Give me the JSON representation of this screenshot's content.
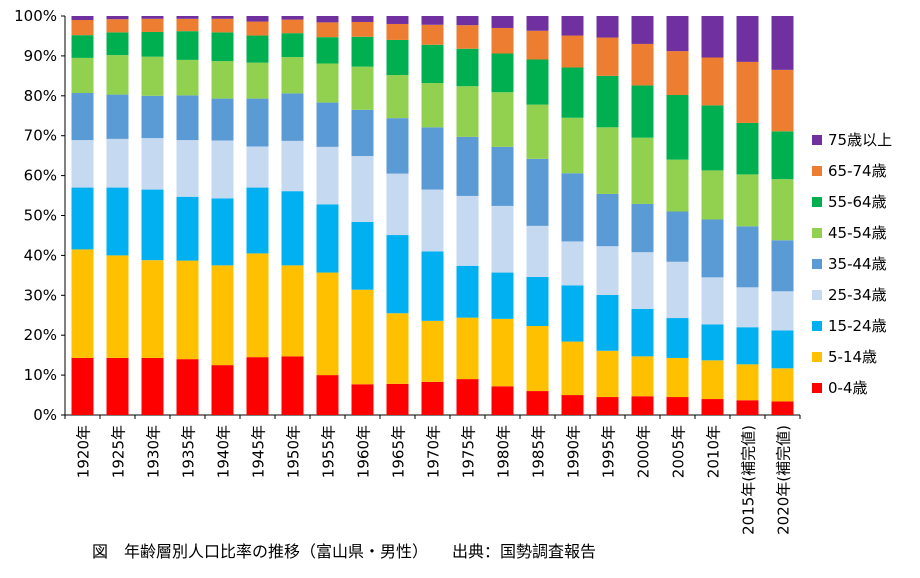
{
  "chart_data": {
    "type": "bar",
    "stacked": true,
    "normalized": true,
    "categories": [
      "1920年",
      "1925年",
      "1930年",
      "1935年",
      "1940年",
      "1945年",
      "1950年",
      "1955年",
      "1960年",
      "1965年",
      "1970年",
      "1975年",
      "1980年",
      "1985年",
      "1990年",
      "1995年",
      "2000年",
      "2005年",
      "2010年",
      "2015年(補完値)",
      "2020年(補完値)"
    ],
    "ylim": [
      0,
      100
    ],
    "yticks": [
      "0%",
      "10%",
      "20%",
      "30%",
      "40%",
      "50%",
      "60%",
      "70%",
      "80%",
      "90%",
      "100%"
    ],
    "grid": false,
    "legend_position": "right",
    "series": [
      {
        "name": "0-4歳",
        "color": "#ff0000",
        "values": [
          14.3,
          14.3,
          14.3,
          14.0,
          12.5,
          14.5,
          14.7,
          10.0,
          7.7,
          7.8,
          8.3,
          9.0,
          7.2,
          6.0,
          5.0,
          4.5,
          4.7,
          4.5,
          4.0,
          3.7,
          3.4
        ]
      },
      {
        "name": "5-14歳",
        "color": "#ffc000",
        "values": [
          27.2,
          25.7,
          24.5,
          24.7,
          25.0,
          26.0,
          22.8,
          25.7,
          23.7,
          17.7,
          15.3,
          15.4,
          16.9,
          16.3,
          13.4,
          11.6,
          10.0,
          9.8,
          9.7,
          9.0,
          8.3
        ]
      },
      {
        "name": "15-24歳",
        "color": "#00b0f0",
        "values": [
          15.5,
          17.0,
          17.7,
          16.0,
          16.8,
          16.5,
          18.6,
          17.1,
          17.0,
          19.6,
          17.4,
          13.0,
          11.6,
          12.3,
          14.1,
          14.0,
          11.9,
          10.0,
          9.0,
          9.3,
          9.5
        ]
      },
      {
        "name": "25-34歳",
        "color": "#c5d9f1",
        "values": [
          11.9,
          12.2,
          12.9,
          14.2,
          14.5,
          10.3,
          12.6,
          14.4,
          16.5,
          15.4,
          15.5,
          17.5,
          16.7,
          12.8,
          11.0,
          12.2,
          14.2,
          14.1,
          11.8,
          10.0,
          9.8
        ]
      },
      {
        "name": "35-44歳",
        "color": "#5b9bd5",
        "values": [
          11.8,
          11.1,
          10.6,
          11.2,
          10.5,
          12.0,
          11.9,
          11.1,
          11.6,
          13.9,
          15.6,
          14.8,
          14.8,
          16.8,
          17.1,
          13.1,
          12.1,
          12.6,
          14.5,
          15.3,
          12.8
        ]
      },
      {
        "name": "45-54歳",
        "color": "#92d050",
        "values": [
          8.8,
          9.9,
          9.8,
          8.9,
          9.4,
          9.0,
          9.1,
          9.8,
          10.8,
          10.8,
          11.1,
          12.7,
          13.7,
          13.6,
          13.9,
          16.7,
          16.6,
          13.0,
          12.3,
          13.0,
          15.3
        ]
      },
      {
        "name": "55-64歳",
        "color": "#00b050",
        "values": [
          5.7,
          5.7,
          6.2,
          7.2,
          7.2,
          6.8,
          6.0,
          6.6,
          7.5,
          8.8,
          9.6,
          9.4,
          9.7,
          11.3,
          12.6,
          12.9,
          13.1,
          16.2,
          16.3,
          12.9,
          12.0
        ]
      },
      {
        "name": "65-74歳",
        "color": "#ed7d31",
        "values": [
          3.8,
          3.3,
          3.3,
          3.1,
          3.4,
          3.5,
          3.4,
          3.7,
          3.7,
          4.0,
          5.0,
          5.9,
          6.4,
          7.2,
          8.0,
          9.6,
          10.4,
          11.0,
          12.0,
          15.3,
          15.4
        ]
      },
      {
        "name": "75歳以上",
        "color": "#7030a0",
        "values": [
          1.0,
          0.8,
          0.7,
          0.7,
          0.7,
          1.4,
          0.9,
          1.6,
          1.5,
          2.0,
          2.2,
          2.3,
          3.0,
          3.7,
          4.9,
          5.4,
          7.0,
          8.8,
          10.4,
          11.5,
          13.5
        ]
      }
    ]
  },
  "caption": "図　年齢層別人口比率の推移（富山県・男性）　　出典：国勢調査報告"
}
